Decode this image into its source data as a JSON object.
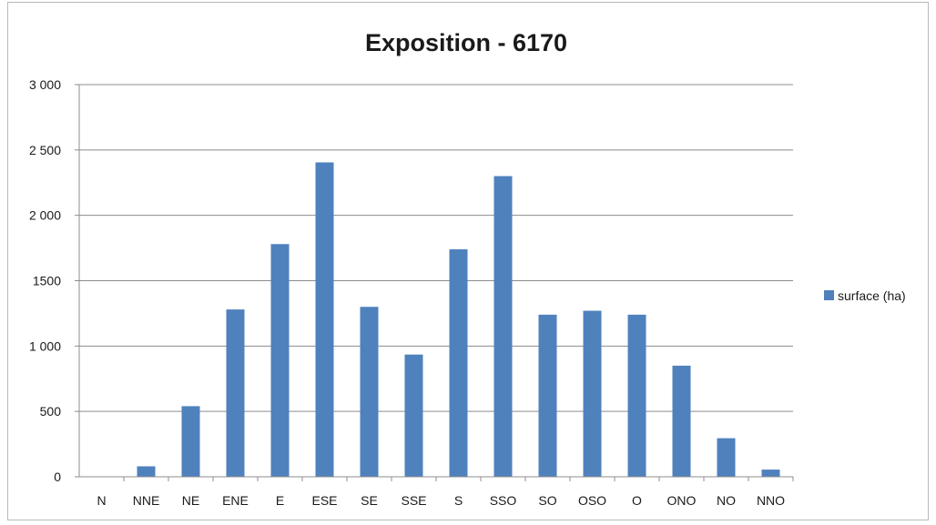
{
  "chart_data": {
    "type": "bar",
    "title": "Exposition - 6170",
    "xlabel": "",
    "ylabel": "",
    "categories": [
      "N",
      "NNE",
      "NE",
      "ENE",
      "E",
      "ESE",
      "SE",
      "SSE",
      "S",
      "SSO",
      "SO",
      "OSO",
      "O",
      "ONO",
      "NO",
      "NNO"
    ],
    "series": [
      {
        "name": "surface (ha)",
        "values": [
          0,
          80,
          540,
          1280,
          1780,
          2405,
          1300,
          935,
          1740,
          2300,
          1240,
          1270,
          1240,
          850,
          295,
          55
        ],
        "color": "#4f81bd"
      }
    ],
    "ylim": [
      0,
      3000
    ],
    "yticks": [
      0,
      500,
      1000,
      1500,
      2000,
      2500,
      3000
    ],
    "ytick_labels": [
      "0",
      "500",
      "1 000",
      "1500",
      "2 000",
      "2 500",
      "3 000"
    ],
    "grid": true,
    "legend_position": "right"
  }
}
